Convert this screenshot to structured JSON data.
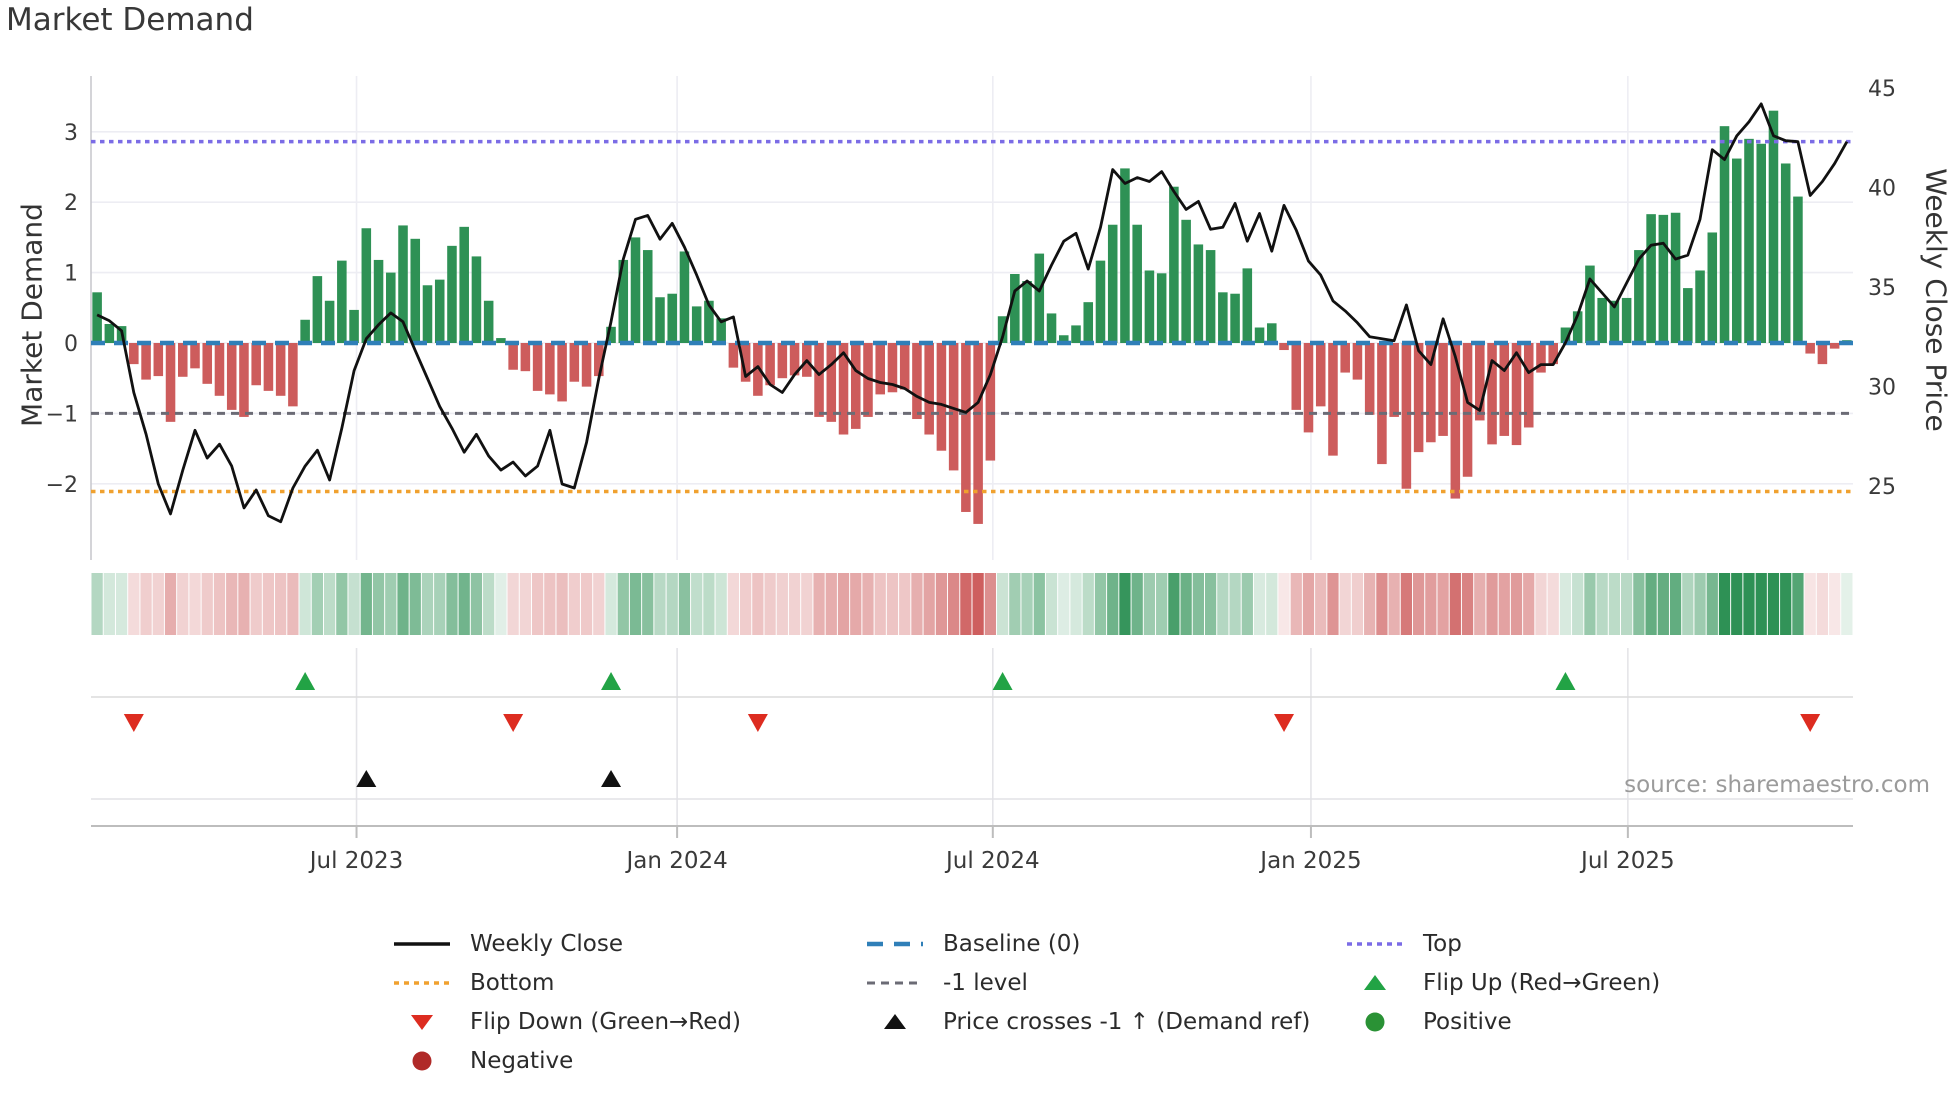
{
  "title": "Market Demand",
  "source_text": "source: sharemaestro.com",
  "axes": {
    "left_label": "Market Demand",
    "right_label": "Weekly Close Price"
  },
  "legend": {
    "items": [
      {
        "label": "Weekly Close"
      },
      {
        "label": "Baseline (0)"
      },
      {
        "label": "Top"
      },
      {
        "label": "Bottom"
      },
      {
        "label": "-1 level"
      },
      {
        "label": "Flip Up (Red→Green)"
      },
      {
        "label": "Flip Down (Green→Red)"
      },
      {
        "label": "Price crosses -1 ↑ (Demand ref)"
      },
      {
        "label": "Positive"
      },
      {
        "label": "Negative"
      }
    ]
  },
  "colors": {
    "positive_bar": "#2e9155",
    "negative_bar": "#cd5c5c",
    "price_line": "#111111",
    "baseline": "#2f7fb8",
    "top": "#7b6ce6",
    "bottom": "#f0a12f",
    "minus_one": "#6b6b75",
    "flip_up": "#22a345",
    "flip_down": "#dd2c20",
    "price_cross": "#111111",
    "positive_dot": "#2a9235",
    "negative_dot": "#b02a28",
    "grid": "#ededf3",
    "axis": "#c9c9cf",
    "tick_text": "#3a3a3a"
  },
  "chart_data": {
    "type": "bar",
    "title": "Market Demand",
    "xlabel": "",
    "ylabel_left": "Market Demand",
    "ylabel_right": "Weekly Close Price",
    "ylim_left": [
      -3.0,
      3.8
    ],
    "ylim_right": [
      25,
      45
    ],
    "grid": true,
    "legend_position": "bottom",
    "x_ticks": [
      {
        "label": "Jul 2023",
        "week": 21.2
      },
      {
        "label": "Jan 2024",
        "week": 47.4
      },
      {
        "label": "Jul 2024",
        "week": 73.2
      },
      {
        "label": "Jan 2025",
        "week": 99.2
      },
      {
        "label": "Jul 2025",
        "week": 125.1
      }
    ],
    "y_ticks_left": [
      {
        "label": "3",
        "value": 3
      },
      {
        "label": "2",
        "value": 2
      },
      {
        "label": "1",
        "value": 1
      },
      {
        "label": "0",
        "value": 0
      },
      {
        "label": "−1",
        "value": -1
      },
      {
        "label": "−2",
        "value": -2
      }
    ],
    "y_ticks_right": [
      {
        "label": "45",
        "value": 45
      },
      {
        "label": "40",
        "value": 40
      },
      {
        "label": "35",
        "value": 35
      },
      {
        "label": "30",
        "value": 30
      },
      {
        "label": "25",
        "value": 25
      }
    ],
    "reference_lines": [
      {
        "name": "Top",
        "value": 2.86,
        "color_key": "top",
        "dash": "4.5 4.5",
        "width": 3.5
      },
      {
        "name": "Baseline (0)",
        "value": 0,
        "color_key": "baseline",
        "dash": "14 9",
        "width": 4.5
      },
      {
        "name": "-1 level",
        "value": -1,
        "color_key": "minus_one",
        "dash": "8 6",
        "width": 3
      },
      {
        "name": "Bottom",
        "value": -2.11,
        "color_key": "bottom",
        "dash": "4.5 4.5",
        "width": 3.5
      }
    ],
    "series": [
      {
        "name": "Market Demand",
        "type": "bar",
        "axis": "left",
        "values": [
          0.72,
          0.27,
          0.24,
          -0.3,
          -0.52,
          -0.47,
          -1.12,
          -0.48,
          -0.36,
          -0.58,
          -0.75,
          -0.95,
          -1.05,
          -0.6,
          -0.68,
          -0.75,
          -0.9,
          0.33,
          0.95,
          0.6,
          1.17,
          0.47,
          1.63,
          1.18,
          1.0,
          1.67,
          1.48,
          0.82,
          0.9,
          1.38,
          1.65,
          1.23,
          0.6,
          0.07,
          -0.38,
          -0.4,
          -0.68,
          -0.73,
          -0.83,
          -0.55,
          -0.62,
          -0.47,
          0.23,
          1.18,
          1.5,
          1.32,
          0.65,
          0.7,
          1.3,
          0.52,
          0.6,
          0.35,
          -0.35,
          -0.55,
          -0.75,
          -0.6,
          -0.5,
          -0.46,
          -0.48,
          -1.05,
          -1.12,
          -1.3,
          -1.22,
          -1.05,
          -0.73,
          -0.7,
          -0.66,
          -1.08,
          -1.3,
          -1.53,
          -1.81,
          -2.4,
          -2.57,
          -1.67,
          0.38,
          0.98,
          0.88,
          1.27,
          0.42,
          0.11,
          0.25,
          0.58,
          1.17,
          1.68,
          2.48,
          1.68,
          1.03,
          0.99,
          2.22,
          1.75,
          1.4,
          1.32,
          0.72,
          0.7,
          1.06,
          0.22,
          0.28,
          -0.1,
          -0.95,
          -1.27,
          -0.9,
          -1.6,
          -0.42,
          -0.52,
          -1.02,
          -1.72,
          -1.05,
          -2.07,
          -1.55,
          -1.41,
          -1.32,
          -2.21,
          -1.9,
          -1.1,
          -1.44,
          -1.32,
          -1.45,
          -1.2,
          -0.42,
          -0.3,
          0.22,
          0.45,
          1.1,
          0.64,
          0.6,
          0.64,
          1.32,
          1.83,
          1.82,
          1.85,
          0.78,
          1.03,
          1.57,
          3.08,
          2.62,
          2.9,
          2.83,
          3.3,
          2.55,
          2.08,
          -0.15,
          -0.3,
          -0.08,
          0.04
        ]
      },
      {
        "name": "Weekly Close",
        "type": "line",
        "axis": "right",
        "values": [
          33.6,
          33.3,
          32.8,
          29.7,
          27.6,
          25.1,
          23.6,
          25.8,
          27.8,
          26.4,
          27.1,
          26.0,
          23.9,
          24.8,
          23.5,
          23.2,
          24.9,
          26.0,
          26.8,
          25.3,
          27.9,
          30.8,
          32.4,
          33.1,
          33.7,
          33.25,
          31.8,
          30.4,
          29.0,
          27.9,
          26.7,
          27.6,
          26.5,
          25.8,
          26.2,
          25.5,
          26.0,
          27.8,
          25.1,
          24.9,
          27.2,
          30.4,
          33.25,
          36.4,
          38.4,
          38.6,
          37.4,
          38.2,
          37.0,
          35.6,
          34.1,
          33.25,
          33.5,
          30.5,
          31.0,
          30.1,
          29.7,
          30.6,
          31.3,
          30.6,
          31.1,
          31.7,
          30.8,
          30.4,
          30.2,
          30.1,
          29.9,
          29.5,
          29.2,
          29.1,
          28.9,
          28.7,
          29.2,
          30.6,
          32.5,
          34.8,
          35.3,
          34.8,
          36.1,
          37.3,
          37.7,
          35.9,
          38.0,
          40.9,
          40.2,
          40.5,
          40.3,
          40.8,
          39.8,
          38.9,
          39.3,
          37.9,
          38.0,
          39.2,
          37.3,
          38.7,
          36.8,
          39.1,
          37.85,
          36.3,
          35.6,
          34.3,
          33.8,
          33.2,
          32.5,
          32.4,
          32.3,
          34.1,
          31.8,
          31.1,
          33.4,
          31.5,
          29.2,
          28.8,
          31.3,
          30.8,
          31.7,
          30.7,
          31.1,
          31.1,
          32.2,
          33.6,
          35.4,
          34.7,
          34.0,
          35.2,
          36.4,
          37.1,
          37.2,
          36.4,
          36.6,
          38.4,
          41.9,
          41.4,
          42.6,
          43.3,
          44.2,
          42.6,
          42.35,
          42.3,
          39.6,
          40.3,
          41.2,
          42.3
        ]
      }
    ],
    "markers": {
      "flip_up_weeks": [
        17,
        42,
        74,
        120
      ],
      "flip_down_weeks": [
        3,
        34,
        54,
        97,
        140
      ],
      "price_cross_weeks": [
        22,
        42
      ]
    },
    "heatmap": {
      "note": "strip colored from Market Demand values, green positive / red negative, opacity scaled by magnitude"
    }
  }
}
